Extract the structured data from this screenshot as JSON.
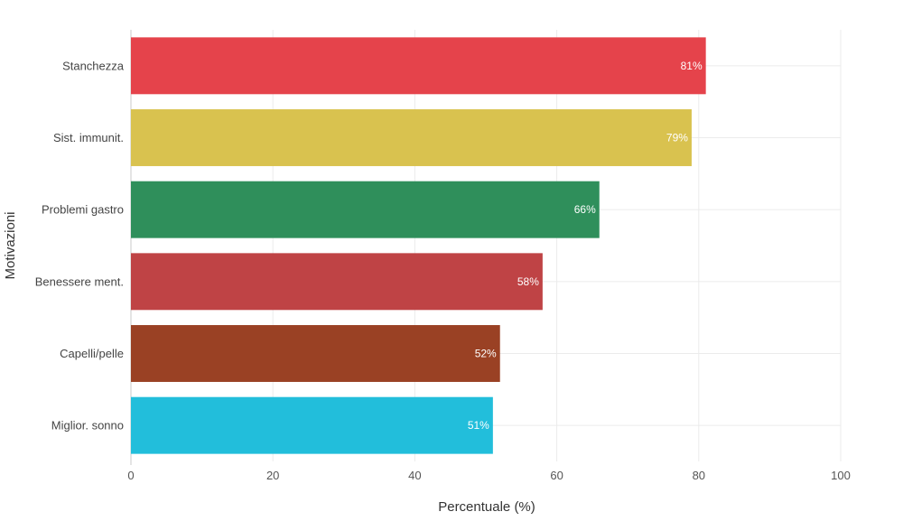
{
  "chart_data": {
    "type": "bar",
    "orientation": "horizontal",
    "title": "",
    "xlabel": "Percentuale (%)",
    "ylabel": "Motivazioni",
    "xlim": [
      0,
      100
    ],
    "xticks": [
      "0",
      "20",
      "40",
      "60",
      "80",
      "100"
    ],
    "grid": true,
    "categories": [
      "Stanchezza",
      "Sist. immunit.",
      "Problemi gastro",
      "Benessere ment.",
      "Capelli/pelle",
      "Miglior. sonno"
    ],
    "values": [
      81,
      79,
      66,
      58,
      52,
      51
    ],
    "value_labels": [
      "81%",
      "79%",
      "66%",
      "58%",
      "52%",
      "51%"
    ],
    "colors": [
      "#e5434b",
      "#d9c24f",
      "#2f8f5b",
      "#bf4345",
      "#9a4124",
      "#22bedb"
    ]
  }
}
